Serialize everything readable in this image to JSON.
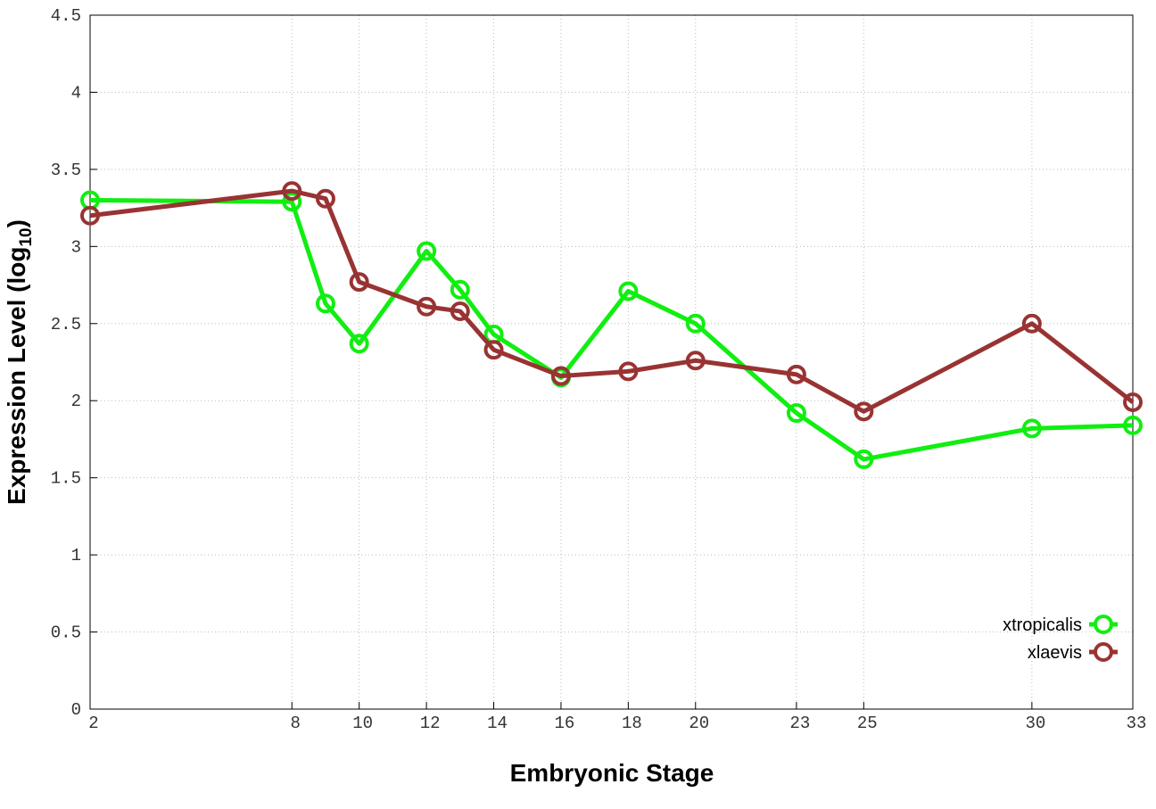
{
  "chart_data": {
    "type": "line",
    "x_label": "Embryonic Stage",
    "y_label": {
      "text": "Expression Level (log",
      "subscript": "10",
      "suffix": ")"
    },
    "x": [
      2,
      8,
      9,
      10,
      12,
      13,
      14,
      16,
      18,
      20,
      23,
      25,
      30,
      33
    ],
    "series": [
      {
        "name": "xtropicalis",
        "color": "#11ee11",
        "values": [
          3.3,
          3.29,
          2.63,
          2.37,
          2.97,
          2.72,
          2.43,
          2.15,
          2.71,
          2.5,
          1.92,
          1.62,
          1.82,
          1.84
        ]
      },
      {
        "name": "xlaevis",
        "color": "#993333",
        "values": [
          3.2,
          3.36,
          3.31,
          2.77,
          2.61,
          2.58,
          2.33,
          2.16,
          2.19,
          2.26,
          2.17,
          1.93,
          2.5,
          1.99
        ]
      }
    ],
    "xlim": [
      2,
      33
    ],
    "xticks": [
      2,
      8,
      10,
      12,
      14,
      16,
      18,
      20,
      23,
      25,
      30,
      33
    ],
    "ylim": [
      0,
      4.5
    ],
    "yticks": [
      0,
      0.5,
      1,
      1.5,
      2,
      2.5,
      3,
      3.5,
      4,
      4.5
    ],
    "grid": true,
    "legend": "bottom-right"
  }
}
